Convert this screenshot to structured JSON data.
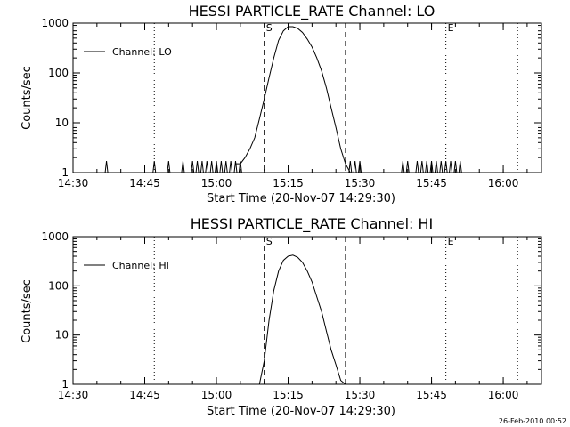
{
  "chart_data": [
    {
      "type": "line",
      "title": "HESSI PARTICLE_RATE Channel: LO",
      "xlabel": "Start Time (20-Nov-07 14:29:30)",
      "ylabel": "Counts/sec",
      "yscale": "log",
      "xlim": [
        "14:30",
        "16:08"
      ],
      "ylim": [
        1,
        1000
      ],
      "xticks": [
        "14:30",
        "14:45",
        "15:00",
        "15:15",
        "15:30",
        "15:45",
        "16:00"
      ],
      "yticks": [
        "1",
        "10",
        "100",
        "1000"
      ],
      "legend": {
        "placement": "top-left",
        "entries": [
          "Channel: LO"
        ]
      },
      "grid": false,
      "vlines": [
        {
          "x": "14:47",
          "style": "dotted"
        },
        {
          "x": "15:10",
          "style": "dashed",
          "label": "S"
        },
        {
          "x": "15:27",
          "style": "dashed"
        },
        {
          "x": "15:48",
          "style": "dotted",
          "label": "E"
        },
        {
          "x": "16:03",
          "style": "dotted"
        }
      ],
      "series": [
        {
          "name": "Channel: LO",
          "spikes": [
            "14:37",
            "14:47",
            "14:50",
            "14:53",
            "14:55",
            "14:56",
            "14:57",
            "14:58",
            "14:59",
            "15:00",
            "15:01",
            "15:02",
            "15:03",
            "15:04",
            "15:05",
            "15:28",
            "15:29",
            "15:30",
            "15:39",
            "15:40",
            "15:42",
            "15:43",
            "15:44",
            "15:45",
            "15:46",
            "15:47",
            "15:48",
            "15:49",
            "15:50",
            "15:51"
          ],
          "points": [
            [
              "15:04",
              1.5
            ],
            [
              "15:05",
              1.5
            ],
            [
              "15:06",
              2
            ],
            [
              "15:07",
              3
            ],
            [
              "15:08",
              5
            ],
            [
              "15:09",
              12
            ],
            [
              "15:10",
              30
            ],
            [
              "15:11",
              80
            ],
            [
              "15:12",
              200
            ],
            [
              "15:13",
              450
            ],
            [
              "15:14",
              700
            ],
            [
              "15:15",
              850
            ],
            [
              "15:16",
              850
            ],
            [
              "15:17",
              780
            ],
            [
              "15:18",
              650
            ],
            [
              "15:19",
              480
            ],
            [
              "15:20",
              330
            ],
            [
              "15:21",
              200
            ],
            [
              "15:22",
              110
            ],
            [
              "15:23",
              50
            ],
            [
              "15:24",
              20
            ],
            [
              "15:25",
              8
            ],
            [
              "15:26",
              3
            ],
            [
              "15:27",
              1.5
            ],
            [
              "15:28",
              1
            ]
          ]
        }
      ]
    },
    {
      "type": "line",
      "title": "HESSI PARTICLE_RATE Channel: HI",
      "xlabel": "Start Time (20-Nov-07 14:29:30)",
      "ylabel": "Counts/sec",
      "yscale": "log",
      "xlim": [
        "14:30",
        "16:08"
      ],
      "ylim": [
        1,
        1000
      ],
      "xticks": [
        "14:30",
        "14:45",
        "15:00",
        "15:15",
        "15:30",
        "15:45",
        "16:00"
      ],
      "yticks": [
        "1",
        "10",
        "100",
        "1000"
      ],
      "legend": {
        "placement": "top-left",
        "entries": [
          "Channel: HI"
        ]
      },
      "grid": false,
      "vlines": [
        {
          "x": "14:47",
          "style": "dotted"
        },
        {
          "x": "15:10",
          "style": "dashed",
          "label": "S"
        },
        {
          "x": "15:27",
          "style": "dashed"
        },
        {
          "x": "15:48",
          "style": "dotted",
          "label": "E"
        },
        {
          "x": "16:03",
          "style": "dotted"
        }
      ],
      "series": [
        {
          "name": "Channel: HI",
          "points": [
            [
              "15:09",
              1
            ],
            [
              "15:10",
              3
            ],
            [
              "15:11",
              20
            ],
            [
              "15:12",
              80
            ],
            [
              "15:13",
              200
            ],
            [
              "15:14",
              330
            ],
            [
              "15:15",
              400
            ],
            [
              "15:16",
              420
            ],
            [
              "15:17",
              380
            ],
            [
              "15:18",
              300
            ],
            [
              "15:19",
              200
            ],
            [
              "15:20",
              120
            ],
            [
              "15:21",
              60
            ],
            [
              "15:22",
              30
            ],
            [
              "15:23",
              12
            ],
            [
              "15:24",
              5
            ],
            [
              "15:25",
              2.5
            ],
            [
              "15:26",
              1.2
            ],
            [
              "15:27",
              1
            ]
          ]
        }
      ]
    }
  ],
  "footer": {
    "timestamp": "26-Feb-2010 00:52"
  }
}
